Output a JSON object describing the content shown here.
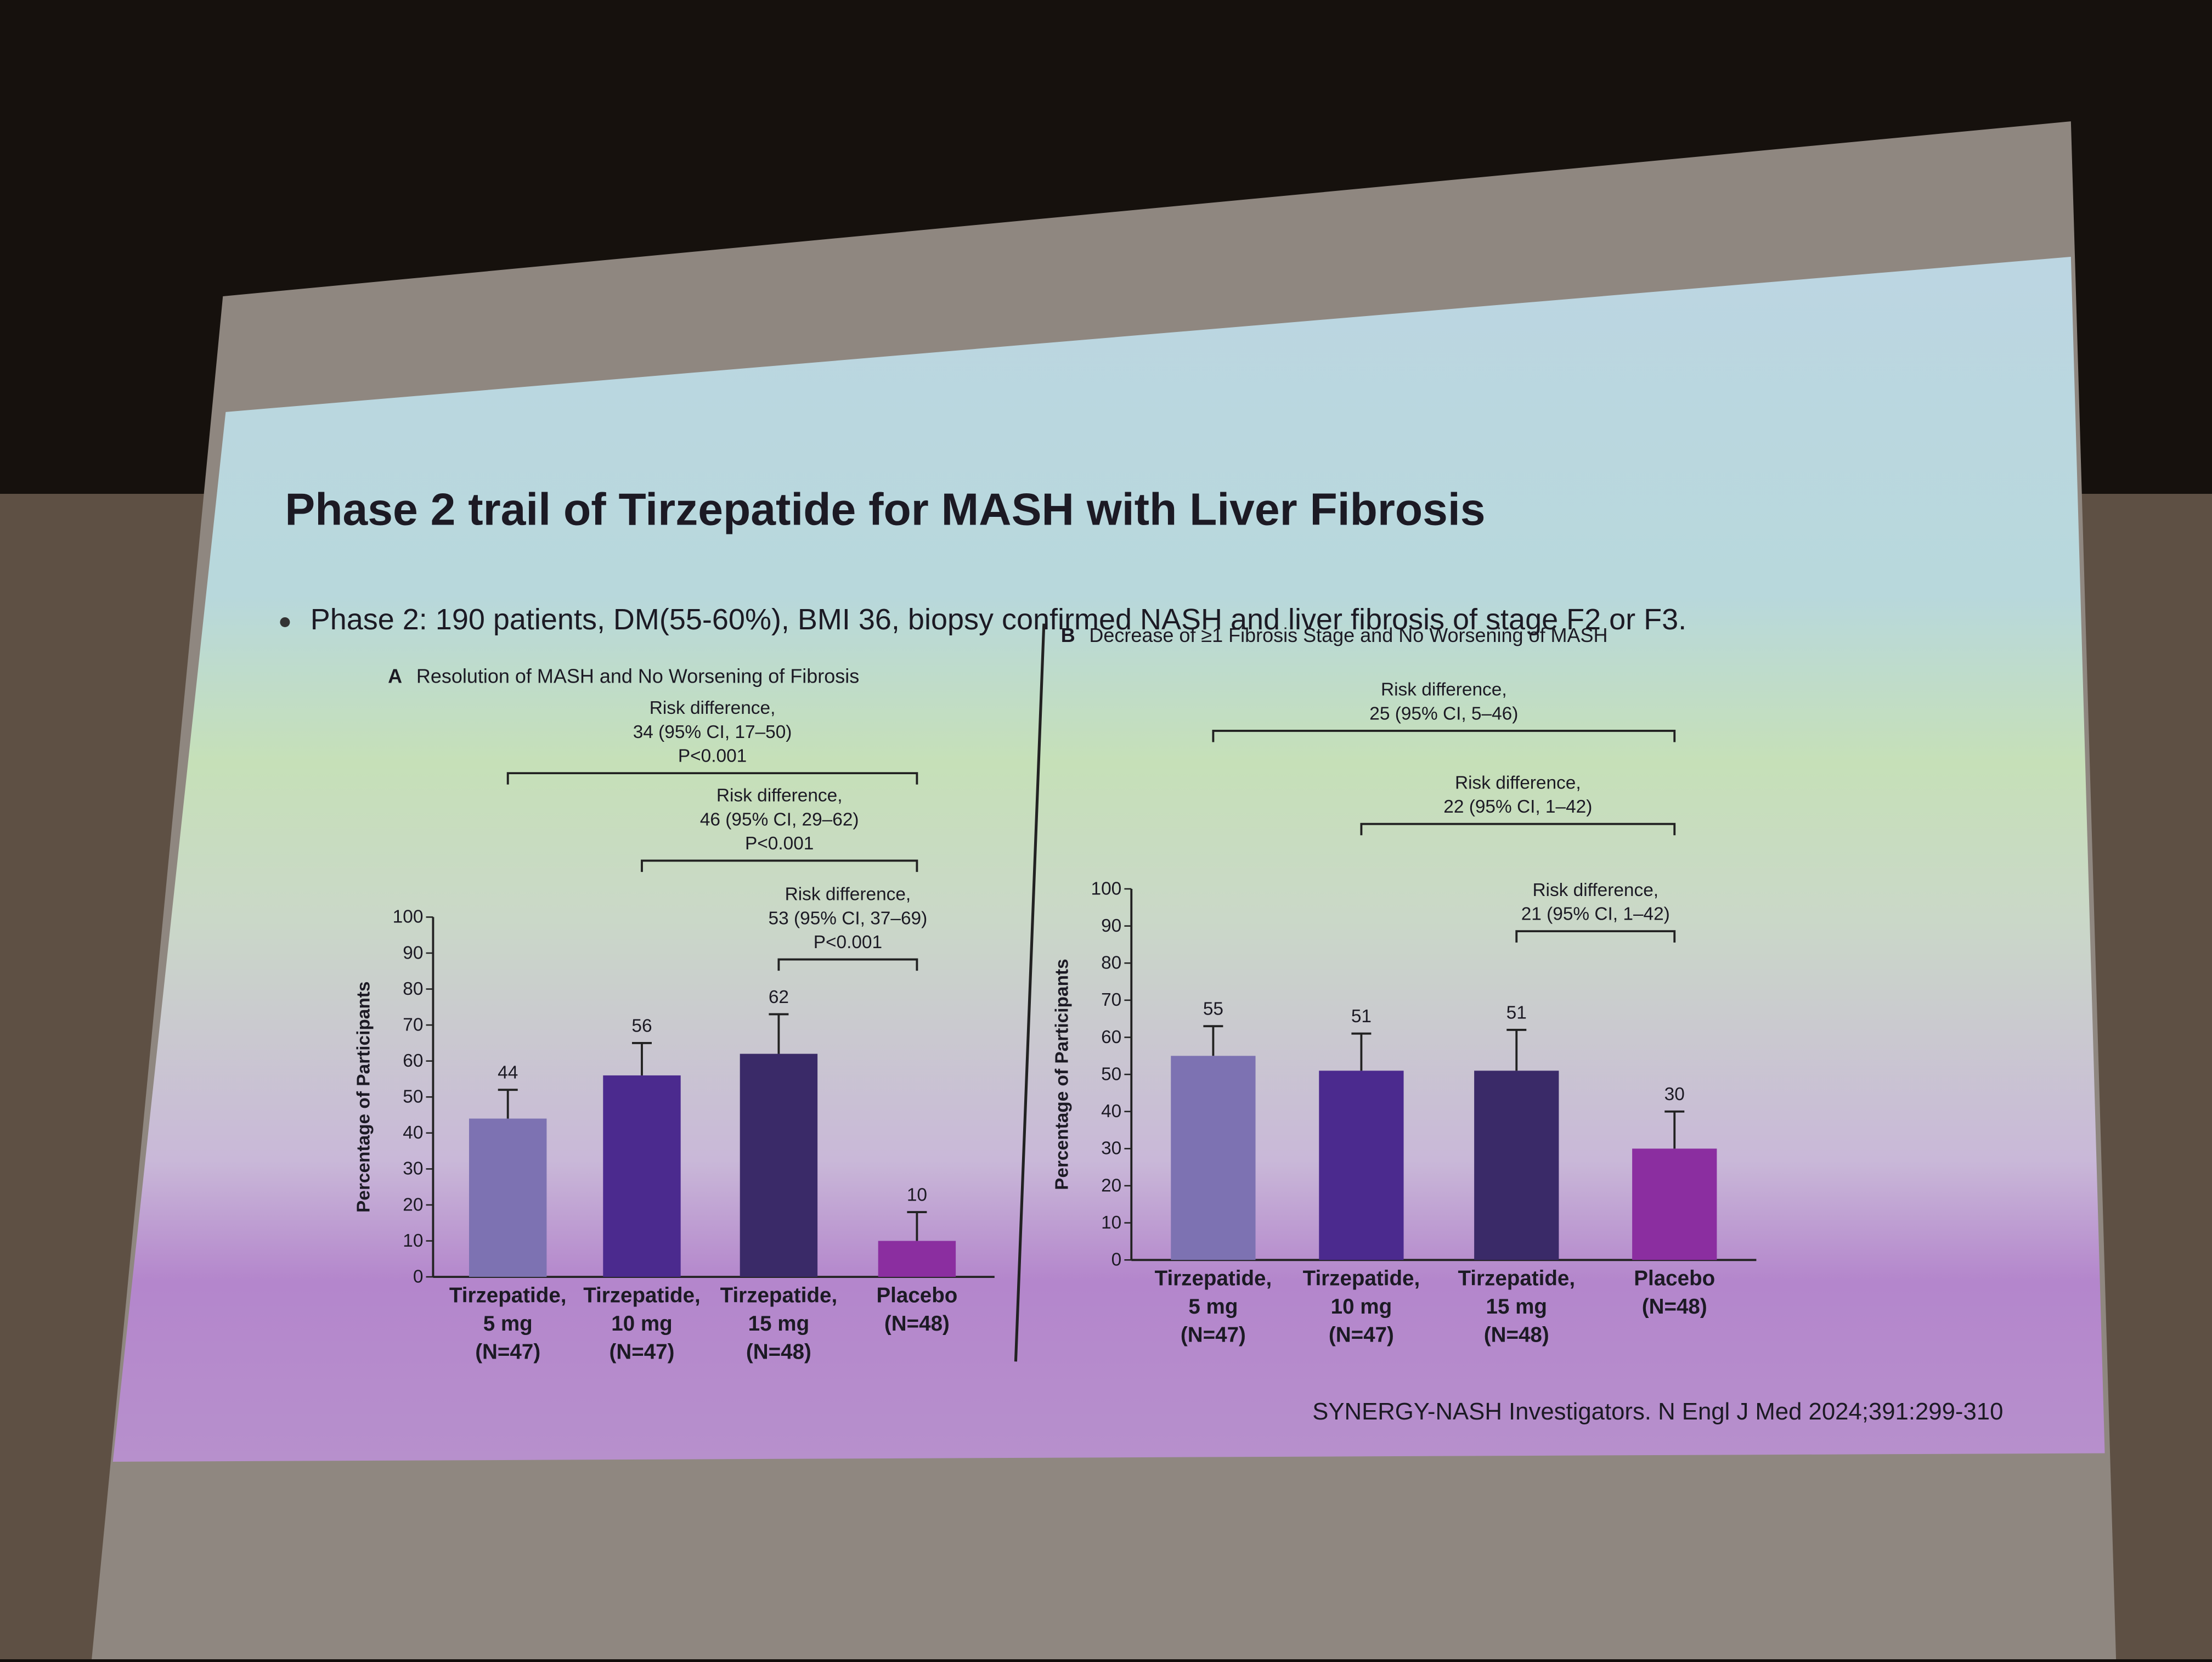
{
  "title": "Phase 2 trail of Tirzepatide for MASH with Liver Fibrosis",
  "bullet": "Phase 2: 190 patients, DM(55-60%), BMI 36, biopsy confirmed NASH and liver fibrosis of stage F2 or F3.",
  "citation": "SYNERGY-NASH Investigators. N Engl J Med 2024;391:299-310",
  "chart_data": [
    {
      "type": "bar",
      "panel": "A",
      "title": "Resolution of MASH and No Worsening of Fibrosis",
      "y_label": "Percentage of Participants",
      "categories": [
        [
          "Tirzepatide,",
          "5 mg",
          "(N=47)"
        ],
        [
          "Tirzepatide,",
          "10 mg",
          "(N=47)"
        ],
        [
          "Tirzepatide,",
          "15 mg",
          "(N=48)"
        ],
        [
          "Placebo",
          "(N=48)"
        ]
      ],
      "values": [
        44,
        56,
        62,
        10
      ],
      "errors": [
        8,
        9,
        11,
        8
      ],
      "colors": [
        "#7d72b2",
        "#4b2a8e",
        "#3a2a68",
        "#8b2ea0"
      ],
      "ylim": [
        0,
        100
      ],
      "yticks": [
        0,
        10,
        20,
        30,
        40,
        50,
        60,
        70,
        80,
        90,
        100
      ],
      "annotations": [
        [
          "Risk difference,",
          "34 (95% CI, 17–50)",
          "P<0.001"
        ],
        [
          "Risk difference,",
          "46 (95% CI, 29–62)",
          "P<0.001"
        ],
        [
          "Risk difference,",
          "53 (95% CI, 37–69)",
          "P<0.001"
        ]
      ]
    },
    {
      "type": "bar",
      "panel": "B",
      "title": "Decrease of ≥1 Fibrosis Stage and No Worsening of MASH",
      "y_label": "Percentage of Participants",
      "categories": [
        [
          "Tirzepatide,",
          "5 mg",
          "(N=47)"
        ],
        [
          "Tirzepatide,",
          "10 mg",
          "(N=47)"
        ],
        [
          "Tirzepatide,",
          "15 mg",
          "(N=48)"
        ],
        [
          "Placebo",
          "(N=48)"
        ]
      ],
      "values": [
        55,
        51,
        51,
        30
      ],
      "errors": [
        8,
        10,
        11,
        10
      ],
      "colors": [
        "#7d72b2",
        "#4b2a8e",
        "#3a2a68",
        "#8b2ea0"
      ],
      "ylim": [
        0,
        100
      ],
      "yticks": [
        0,
        10,
        20,
        30,
        40,
        50,
        60,
        70,
        80,
        90,
        100
      ],
      "annotations": [
        [
          "Risk difference,",
          "25 (95% CI, 5–46)"
        ],
        [
          "Risk difference,",
          "22 (95% CI, 1–42)"
        ],
        [
          "Risk difference,",
          "21 (95% CI, 1–42)"
        ]
      ]
    }
  ]
}
